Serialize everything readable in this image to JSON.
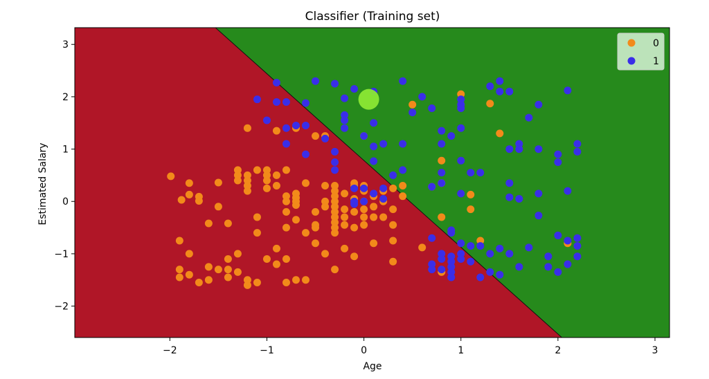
{
  "chart_data": {
    "type": "scatter",
    "title": "Classifier (Training set)",
    "xlabel": "Age",
    "ylabel": "Estimated Salary",
    "xlim": [
      -2.98,
      3.15
    ],
    "ylim": [
      -2.6,
      3.32
    ],
    "xticks": [
      -2,
      -1,
      0,
      1,
      2,
      3
    ],
    "xtick_labels": [
      "−2",
      "−1",
      "0",
      "1",
      "2",
      "3"
    ],
    "yticks": [
      -2,
      -1,
      0,
      1,
      2,
      3
    ],
    "ytick_labels": [
      "−2",
      "−1",
      "0",
      "1",
      "2",
      "3"
    ],
    "decision_boundary": [
      [
        -1.53,
        3.32
      ],
      [
        2.04,
        -2.6
      ]
    ],
    "regions": [
      {
        "class": "0",
        "color": "#b01627",
        "side": "lower-left"
      },
      {
        "class": "1",
        "color": "#268a1c",
        "side": "upper-right"
      }
    ],
    "legend_position": "top-right",
    "cursor_highlight": {
      "x": 0.05,
      "y": 1.95
    },
    "series": [
      {
        "name": "0",
        "color": "#f28a1a",
        "points": [
          [
            -1.99,
            0.48
          ],
          [
            -1.88,
            0.03
          ],
          [
            -1.8,
            0.13
          ],
          [
            -1.8,
            0.35
          ],
          [
            -1.7,
            0.01
          ],
          [
            -1.7,
            0.09
          ],
          [
            -1.6,
            -0.42
          ],
          [
            -1.5,
            0.36
          ],
          [
            -1.5,
            -0.1
          ],
          [
            -1.4,
            -0.42
          ],
          [
            -1.3,
            0.5
          ],
          [
            -1.3,
            0.6
          ],
          [
            -1.3,
            0.4
          ],
          [
            -1.2,
            0.5
          ],
          [
            -1.2,
            0.4
          ],
          [
            -1.2,
            0.3
          ],
          [
            -1.2,
            0.2
          ],
          [
            -1.1,
            0.6
          ],
          [
            -1.1,
            -0.6
          ],
          [
            -1.0,
            0.4
          ],
          [
            -1.0,
            0.5
          ],
          [
            -1.0,
            0.6
          ],
          [
            -1.0,
            0.25
          ],
          [
            -0.9,
            0.5
          ],
          [
            -0.9,
            0.3
          ],
          [
            -0.8,
            0.1
          ],
          [
            -0.8,
            0.0
          ],
          [
            -0.8,
            0.6
          ],
          [
            -0.8,
            -0.2
          ],
          [
            -0.7,
            0.15
          ],
          [
            -0.7,
            0.0
          ],
          [
            -0.7,
            0.07
          ],
          [
            -0.7,
            -0.07
          ],
          [
            -0.7,
            -0.35
          ],
          [
            -0.6,
            -0.6
          ],
          [
            -0.5,
            -0.45
          ],
          [
            -0.4,
            0.0
          ],
          [
            -0.4,
            -0.1
          ],
          [
            -0.3,
            0.3
          ],
          [
            -0.3,
            0.2
          ],
          [
            -0.3,
            0.1
          ],
          [
            -0.3,
            0.0
          ],
          [
            -0.3,
            -0.1
          ],
          [
            -0.3,
            -0.2
          ],
          [
            -0.3,
            -0.3
          ],
          [
            -0.3,
            -0.4
          ],
          [
            -0.3,
            -0.5
          ],
          [
            -0.3,
            -0.6
          ],
          [
            -0.2,
            0.15
          ],
          [
            -0.2,
            -0.15
          ],
          [
            -0.2,
            -0.3
          ],
          [
            -0.2,
            -0.45
          ],
          [
            -0.1,
            0.35
          ],
          [
            -0.1,
            0.05
          ],
          [
            -0.1,
            -0.2
          ],
          [
            -0.1,
            -0.5
          ],
          [
            0.0,
            0.3
          ],
          [
            0.0,
            0.2
          ],
          [
            0.0,
            0.0
          ],
          [
            0.0,
            -0.15
          ],
          [
            0.0,
            -0.3
          ],
          [
            0.0,
            -0.45
          ],
          [
            0.1,
            0.1
          ],
          [
            0.1,
            -0.1
          ],
          [
            0.1,
            -0.3
          ],
          [
            0.1,
            -0.8
          ],
          [
            0.2,
            0.2
          ],
          [
            0.2,
            0.0
          ],
          [
            0.2,
            -0.3
          ],
          [
            0.3,
            0.25
          ],
          [
            0.3,
            -0.15
          ],
          [
            0.3,
            -0.45
          ],
          [
            0.3,
            -0.75
          ],
          [
            -0.4,
            0.3
          ],
          [
            -0.5,
            -0.2
          ],
          [
            -0.6,
            0.35
          ],
          [
            -0.9,
            -0.9
          ],
          [
            -1.9,
            -0.75
          ],
          [
            -1.8,
            -1.0
          ],
          [
            -1.9,
            -1.3
          ],
          [
            -1.9,
            -1.45
          ],
          [
            -1.8,
            -1.4
          ],
          [
            -1.7,
            -1.55
          ],
          [
            -1.6,
            -1.5
          ],
          [
            -1.6,
            -1.25
          ],
          [
            -1.5,
            -1.3
          ],
          [
            -1.4,
            -1.1
          ],
          [
            -1.4,
            -1.3
          ],
          [
            -1.4,
            -1.45
          ],
          [
            -1.3,
            -1.0
          ],
          [
            -1.3,
            -1.35
          ],
          [
            -1.2,
            -1.5
          ],
          [
            -1.2,
            -1.6
          ],
          [
            -1.1,
            -1.55
          ],
          [
            -1.0,
            -1.1
          ],
          [
            -0.9,
            -1.2
          ],
          [
            -0.8,
            -1.1
          ],
          [
            -0.8,
            -1.55
          ],
          [
            -0.7,
            -1.5
          ],
          [
            -0.6,
            -1.5
          ],
          [
            -0.5,
            -0.8
          ],
          [
            -0.4,
            -1.0
          ],
          [
            -0.3,
            -1.3
          ],
          [
            -0.1,
            -1.05
          ],
          [
            0.3,
            -1.15
          ],
          [
            0.6,
            -0.88
          ],
          [
            0.8,
            -0.3
          ],
          [
            1.1,
            -0.15
          ],
          [
            1.2,
            -0.75
          ],
          [
            2.1,
            -0.8
          ],
          [
            -0.9,
            1.35
          ],
          [
            -1.2,
            1.4
          ],
          [
            -0.7,
            1.4
          ],
          [
            0.0,
            1.25
          ],
          [
            0.5,
            1.85
          ],
          [
            0.8,
            0.78
          ],
          [
            0.7,
            0.28
          ],
          [
            0.8,
            0.35
          ],
          [
            1.1,
            0.13
          ],
          [
            1.0,
            2.05
          ],
          [
            1.3,
            1.87
          ],
          [
            1.4,
            1.3
          ],
          [
            -0.4,
            1.25
          ],
          [
            -0.5,
            1.25
          ],
          [
            0.4,
            0.3
          ],
          [
            0.4,
            0.1
          ],
          [
            -0.1,
            0.3
          ],
          [
            0.8,
            -1.35
          ],
          [
            -0.2,
            -0.9
          ],
          [
            -0.5,
            -0.5
          ],
          [
            -1.1,
            -0.3
          ],
          [
            -0.8,
            -0.5
          ]
        ]
      },
      {
        "name": "1",
        "color": "#3a2ee8",
        "points": [
          [
            -0.9,
            2.27
          ],
          [
            -1.1,
            1.95
          ],
          [
            -0.8,
            1.9
          ],
          [
            -0.6,
            1.88
          ],
          [
            -0.5,
            2.3
          ],
          [
            -0.3,
            2.25
          ],
          [
            -0.2,
            1.97
          ],
          [
            -0.1,
            2.15
          ],
          [
            0.1,
            2.1
          ],
          [
            0.4,
            2.3
          ],
          [
            -1.0,
            1.55
          ],
          [
            -0.7,
            1.45
          ],
          [
            -0.8,
            1.4
          ],
          [
            -0.8,
            1.1
          ],
          [
            -0.4,
            1.2
          ],
          [
            -0.2,
            1.65
          ],
          [
            -0.2,
            1.55
          ],
          [
            -0.2,
            1.4
          ],
          [
            -0.3,
            0.95
          ],
          [
            -0.3,
            0.75
          ],
          [
            -0.3,
            0.6
          ],
          [
            -0.6,
            0.9
          ],
          [
            0.0,
            1.25
          ],
          [
            0.1,
            1.05
          ],
          [
            0.1,
            0.77
          ],
          [
            0.1,
            1.5
          ],
          [
            0.2,
            1.1
          ],
          [
            0.3,
            0.5
          ],
          [
            0.4,
            0.6
          ],
          [
            0.4,
            1.1
          ],
          [
            0.5,
            1.7
          ],
          [
            0.6,
            2.0
          ],
          [
            0.7,
            1.78
          ],
          [
            0.8,
            1.35
          ],
          [
            0.8,
            1.1
          ],
          [
            0.9,
            1.25
          ],
          [
            1.0,
            1.95
          ],
          [
            1.0,
            1.85
          ],
          [
            1.0,
            1.78
          ],
          [
            1.0,
            1.4
          ],
          [
            1.0,
            0.78
          ],
          [
            1.1,
            0.55
          ],
          [
            1.2,
            0.55
          ],
          [
            0.8,
            0.55
          ],
          [
            0.8,
            0.35
          ],
          [
            0.7,
            0.28
          ],
          [
            1.0,
            0.15
          ],
          [
            1.3,
            2.2
          ],
          [
            1.4,
            2.3
          ],
          [
            1.4,
            2.1
          ],
          [
            1.5,
            2.1
          ],
          [
            1.5,
            1.0
          ],
          [
            1.6,
            1.1
          ],
          [
            1.6,
            1.0
          ],
          [
            1.7,
            1.6
          ],
          [
            1.8,
            1.85
          ],
          [
            1.8,
            1.0
          ],
          [
            1.5,
            0.35
          ],
          [
            1.5,
            0.08
          ],
          [
            1.6,
            0.05
          ],
          [
            1.8,
            0.15
          ],
          [
            1.8,
            -0.27
          ],
          [
            2.0,
            0.9
          ],
          [
            2.0,
            0.75
          ],
          [
            2.1,
            2.12
          ],
          [
            2.2,
            1.1
          ],
          [
            2.2,
            0.95
          ],
          [
            2.1,
            0.2
          ],
          [
            2.0,
            -0.65
          ],
          [
            2.1,
            -0.75
          ],
          [
            2.2,
            -0.7
          ],
          [
            2.2,
            -0.85
          ],
          [
            2.2,
            -1.05
          ],
          [
            2.1,
            -1.2
          ],
          [
            2.0,
            -1.35
          ],
          [
            1.9,
            -1.25
          ],
          [
            1.9,
            -1.05
          ],
          [
            1.7,
            -0.88
          ],
          [
            1.5,
            -1.0
          ],
          [
            1.4,
            -0.9
          ],
          [
            1.3,
            -1.0
          ],
          [
            1.2,
            -0.85
          ],
          [
            1.1,
            -0.85
          ],
          [
            1.0,
            -0.8
          ],
          [
            0.9,
            -0.55
          ],
          [
            0.9,
            -0.6
          ],
          [
            0.7,
            -0.7
          ],
          [
            0.8,
            -1.0
          ],
          [
            0.8,
            -1.1
          ],
          [
            0.7,
            -1.2
          ],
          [
            0.7,
            -1.3
          ],
          [
            0.8,
            -1.3
          ],
          [
            0.9,
            -1.05
          ],
          [
            0.9,
            -1.15
          ],
          [
            0.9,
            -1.25
          ],
          [
            0.9,
            -1.35
          ],
          [
            0.9,
            -1.45
          ],
          [
            1.0,
            -1.0
          ],
          [
            1.0,
            -1.1
          ],
          [
            1.1,
            -1.15
          ],
          [
            1.2,
            -1.45
          ],
          [
            1.3,
            -1.35
          ],
          [
            1.4,
            -1.4
          ],
          [
            1.6,
            -1.25
          ],
          [
            0.0,
            0.0
          ],
          [
            0.0,
            0.25
          ],
          [
            0.1,
            0.15
          ],
          [
            0.2,
            0.25
          ],
          [
            0.2,
            0.05
          ],
          [
            -0.1,
            0.0
          ],
          [
            -0.1,
            0.25
          ],
          [
            -0.1,
            -0.05
          ],
          [
            -0.6,
            1.45
          ],
          [
            -0.9,
            1.9
          ]
        ]
      }
    ]
  }
}
